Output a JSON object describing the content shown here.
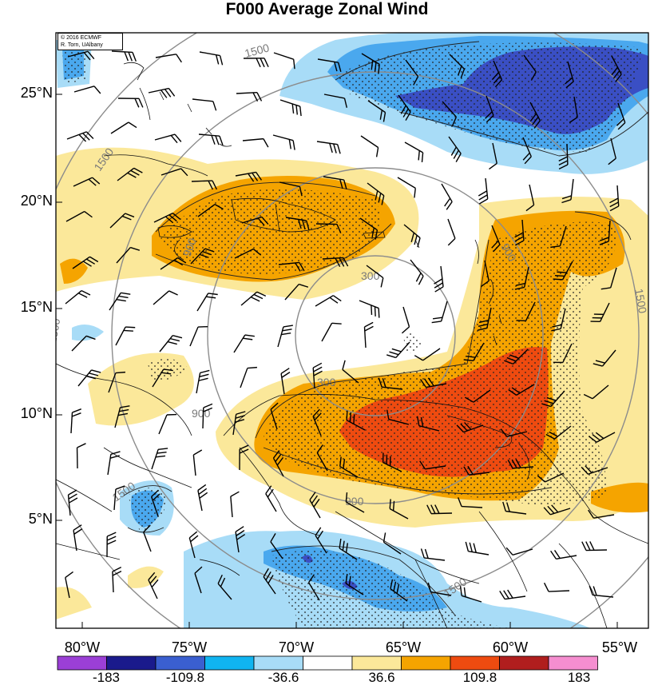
{
  "title": "F000 Average Zonal Wind",
  "credit": {
    "line1": "© 2016 ECMWF",
    "line2": "R. Torn, UAlbany"
  },
  "lat_labels": [
    "25°N",
    "20°N",
    "15°N",
    "10°N",
    "5°N"
  ],
  "lon_labels": [
    "80°W",
    "75°W",
    "70°W",
    "65°W",
    "60°W",
    "55°W"
  ],
  "range_rings": [
    "300",
    "300",
    "900",
    "900",
    "900",
    "900",
    "1500",
    "1500",
    "1500",
    "1500",
    "1500",
    "1500"
  ],
  "colorbar": {
    "labels": [
      "-183",
      "-109.8",
      "-36.6",
      "36.6",
      "109.8",
      "183"
    ],
    "colors": [
      "#9b3fd6",
      "#1a1a8c",
      "#3a5fd0",
      "#10b4f0",
      "#a8dcf7",
      "#ffffff",
      "#fbe89a",
      "#f5a400",
      "#ee4b10",
      "#b01e1e",
      "#f58ed0"
    ]
  },
  "fill_colors": {
    "strong_neg": "#3a4fc4",
    "mid_neg": "#4aa8ee",
    "weak_neg": "#a8dcf7",
    "weak_pos": "#fbe89a",
    "mid_pos": "#f5a400",
    "strong_pos": "#ee4b10"
  }
}
